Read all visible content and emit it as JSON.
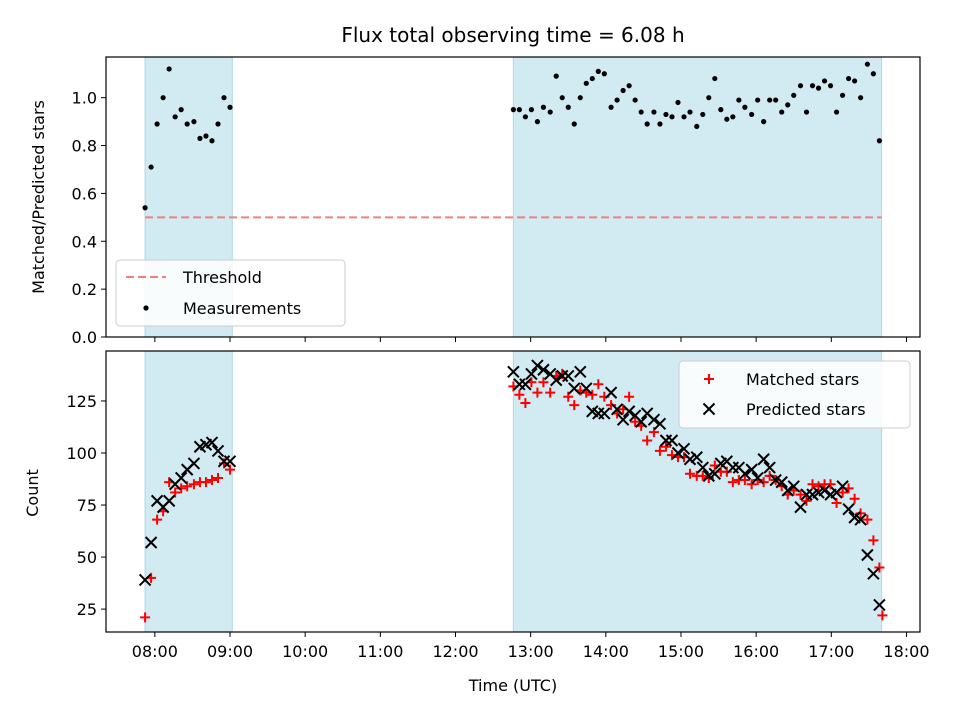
{
  "chart_data": {
    "title": "Flux total observing time = 6.08 h",
    "xlabel": "Time (UTC)",
    "x_unit": "hours UTC",
    "xlim": [
      7.35,
      18.18
    ],
    "x_ticks": [
      8,
      9,
      10,
      11,
      12,
      13,
      14,
      15,
      16,
      17,
      18
    ],
    "x_tick_labels": [
      "08:00",
      "09:00",
      "10:00",
      "11:00",
      "12:00",
      "13:00",
      "14:00",
      "15:00",
      "16:00",
      "17:00",
      "18:00"
    ],
    "shaded_intervals": [
      [
        7.87,
        9.03
      ],
      [
        12.77,
        17.67
      ]
    ],
    "shade_color": "#add8e6",
    "top": {
      "type": "scatter",
      "ylabel": "Matched/Predicted stars",
      "ylim": [
        0.0,
        1.17
      ],
      "y_ticks": [
        0.0,
        0.2,
        0.4,
        0.6,
        0.8,
        1.0
      ],
      "y_tick_labels": [
        "0.0",
        "0.2",
        "0.4",
        "0.6",
        "0.8",
        "1.0"
      ],
      "threshold": {
        "name": "Threshold",
        "value": 0.5,
        "x_range": [
          7.87,
          17.67
        ],
        "color": "#f08080",
        "style": "dashed"
      },
      "legend": {
        "position": "lower-left",
        "entries": [
          "Threshold",
          "Measurements"
        ]
      },
      "series": [
        {
          "name": "Measurements",
          "color": "#000000",
          "marker": "dot",
          "points": [
            [
              7.87,
              0.54
            ],
            [
              7.95,
              0.71
            ],
            [
              8.03,
              0.89
            ],
            [
              8.11,
              1.0
            ],
            [
              8.19,
              1.12
            ],
            [
              8.27,
              0.92
            ],
            [
              8.35,
              0.95
            ],
            [
              8.43,
              0.89
            ],
            [
              8.52,
              0.9
            ],
            [
              8.6,
              0.83
            ],
            [
              8.68,
              0.84
            ],
            [
              8.76,
              0.82
            ],
            [
              8.84,
              0.89
            ],
            [
              8.92,
              1.0
            ],
            [
              9.0,
              0.96
            ],
            [
              12.77,
              0.95
            ],
            [
              12.85,
              0.95
            ],
            [
              12.93,
              0.92
            ],
            [
              13.01,
              0.95
            ],
            [
              13.09,
              0.9
            ],
            [
              13.17,
              0.96
            ],
            [
              13.26,
              0.94
            ],
            [
              13.34,
              1.09
            ],
            [
              13.42,
              1.0
            ],
            [
              13.5,
              0.96
            ],
            [
              13.58,
              0.89
            ],
            [
              13.66,
              1.0
            ],
            [
              13.74,
              1.06
            ],
            [
              13.82,
              1.08
            ],
            [
              13.9,
              1.11
            ],
            [
              13.98,
              1.1
            ],
            [
              14.07,
              0.96
            ],
            [
              14.15,
              0.99
            ],
            [
              14.23,
              1.03
            ],
            [
              14.31,
              1.05
            ],
            [
              14.39,
              0.99
            ],
            [
              14.47,
              0.94
            ],
            [
              14.55,
              0.89
            ],
            [
              14.64,
              0.94
            ],
            [
              14.72,
              0.89
            ],
            [
              14.8,
              0.93
            ],
            [
              14.88,
              0.92
            ],
            [
              14.96,
              0.98
            ],
            [
              15.04,
              0.92
            ],
            [
              15.12,
              0.94
            ],
            [
              15.21,
              0.88
            ],
            [
              15.29,
              0.93
            ],
            [
              15.37,
              1.0
            ],
            [
              15.45,
              1.08
            ],
            [
              15.53,
              0.95
            ],
            [
              15.61,
              0.91
            ],
            [
              15.69,
              0.92
            ],
            [
              15.77,
              0.99
            ],
            [
              15.85,
              0.96
            ],
            [
              15.94,
              0.93
            ],
            [
              16.02,
              0.99
            ],
            [
              16.1,
              0.9
            ],
            [
              16.18,
              0.99
            ],
            [
              16.26,
              0.99
            ],
            [
              16.34,
              0.94
            ],
            [
              16.42,
              0.97
            ],
            [
              16.5,
              1.01
            ],
            [
              16.59,
              1.05
            ],
            [
              16.67,
              0.94
            ],
            [
              16.75,
              1.05
            ],
            [
              16.83,
              1.04
            ],
            [
              16.91,
              1.07
            ],
            [
              16.99,
              1.05
            ],
            [
              17.07,
              0.94
            ],
            [
              17.15,
              1.01
            ],
            [
              17.23,
              1.08
            ],
            [
              17.31,
              1.07
            ],
            [
              17.39,
              1.0
            ],
            [
              17.48,
              1.14
            ],
            [
              17.56,
              1.1
            ],
            [
              17.64,
              0.82
            ]
          ]
        }
      ]
    },
    "bottom": {
      "type": "scatter",
      "ylabel": "Count",
      "ylim": [
        14,
        149
      ],
      "y_ticks": [
        25,
        50,
        75,
        100,
        125
      ],
      "y_tick_labels": [
        "25",
        "50",
        "75",
        "100",
        "125"
      ],
      "legend": {
        "position": "upper-right",
        "entries": [
          "Matched stars",
          "Predicted stars"
        ]
      },
      "series": [
        {
          "name": "Matched stars",
          "color": "#ff0000",
          "marker": "plus",
          "points": [
            [
              7.87,
              21
            ],
            [
              7.95,
              40
            ],
            [
              8.03,
              68
            ],
            [
              8.11,
              72
            ],
            [
              8.19,
              86
            ],
            [
              8.27,
              81
            ],
            [
              8.35,
              83
            ],
            [
              8.43,
              84
            ],
            [
              8.52,
              85
            ],
            [
              8.6,
              86
            ],
            [
              8.68,
              86
            ],
            [
              8.76,
              87
            ],
            [
              8.84,
              88
            ],
            [
              8.92,
              95
            ],
            [
              9.0,
              92
            ],
            [
              12.77,
              132
            ],
            [
              12.85,
              128
            ],
            [
              12.93,
              124
            ],
            [
              13.01,
              134
            ],
            [
              13.09,
              129
            ],
            [
              13.17,
              134
            ],
            [
              13.26,
              129
            ],
            [
              13.34,
              137
            ],
            [
              13.42,
              138
            ],
            [
              13.5,
              127
            ],
            [
              13.58,
              123
            ],
            [
              13.66,
              130
            ],
            [
              13.74,
              129
            ],
            [
              13.82,
              128
            ],
            [
              13.9,
              133
            ],
            [
              13.98,
              127
            ],
            [
              14.07,
              123
            ],
            [
              14.15,
              119
            ],
            [
              14.23,
              121
            ],
            [
              14.31,
              127
            ],
            [
              14.39,
              115
            ],
            [
              14.47,
              113
            ],
            [
              14.55,
              106
            ],
            [
              14.64,
              110
            ],
            [
              14.72,
              101
            ],
            [
              14.8,
              103
            ],
            [
              14.88,
              99
            ],
            [
              14.96,
              98
            ],
            [
              15.04,
              98
            ],
            [
              15.12,
              90
            ],
            [
              15.21,
              89
            ],
            [
              15.29,
              89
            ],
            [
              15.37,
              88
            ],
            [
              15.45,
              94
            ],
            [
              15.53,
              91
            ],
            [
              15.61,
              91
            ],
            [
              15.69,
              86
            ],
            [
              15.77,
              87
            ],
            [
              15.85,
              87
            ],
            [
              15.94,
              85
            ],
            [
              16.02,
              87
            ],
            [
              16.1,
              86
            ],
            [
              16.18,
              89
            ],
            [
              16.26,
              87
            ],
            [
              16.34,
              84
            ],
            [
              16.42,
              80
            ],
            [
              16.5,
              82
            ],
            [
              16.59,
              80
            ],
            [
              16.67,
              77
            ],
            [
              16.75,
              85
            ],
            [
              16.83,
              84
            ],
            [
              16.91,
              85
            ],
            [
              16.99,
              85
            ],
            [
              17.07,
              76
            ],
            [
              17.15,
              81
            ],
            [
              17.23,
              83
            ],
            [
              17.31,
              78
            ],
            [
              17.39,
              71
            ],
            [
              17.48,
              68
            ],
            [
              17.56,
              58
            ],
            [
              17.64,
              45
            ],
            [
              17.68,
              22
            ]
          ]
        },
        {
          "name": "Predicted stars",
          "color": "#000000",
          "marker": "x",
          "points": [
            [
              7.87,
              39
            ],
            [
              7.95,
              57
            ],
            [
              8.03,
              77
            ],
            [
              8.11,
              74
            ],
            [
              8.19,
              77
            ],
            [
              8.27,
              85
            ],
            [
              8.35,
              88
            ],
            [
              8.43,
              92
            ],
            [
              8.52,
              95
            ],
            [
              8.6,
              103
            ],
            [
              8.68,
              104
            ],
            [
              8.76,
              105
            ],
            [
              8.84,
              101
            ],
            [
              8.92,
              96
            ],
            [
              9.0,
              96
            ],
            [
              12.77,
              139
            ],
            [
              12.85,
              133
            ],
            [
              12.93,
              133
            ],
            [
              13.01,
              138
            ],
            [
              13.09,
              142
            ],
            [
              13.17,
              140
            ],
            [
              13.26,
              138
            ],
            [
              13.34,
              135
            ],
            [
              13.42,
              137
            ],
            [
              13.5,
              137
            ],
            [
              13.58,
              131
            ],
            [
              13.66,
              139
            ],
            [
              13.74,
              131
            ],
            [
              13.82,
              120
            ],
            [
              13.9,
              119
            ],
            [
              13.98,
              119
            ],
            [
              14.07,
              129
            ],
            [
              14.15,
              121
            ],
            [
              14.23,
              116
            ],
            [
              14.31,
              120
            ],
            [
              14.39,
              118
            ],
            [
              14.47,
              115
            ],
            [
              14.55,
              119
            ],
            [
              14.64,
              116
            ],
            [
              14.72,
              114
            ],
            [
              14.8,
              106
            ],
            [
              14.88,
              106
            ],
            [
              14.96,
              100
            ],
            [
              15.04,
              102
            ],
            [
              15.12,
              97
            ],
            [
              15.21,
              98
            ],
            [
              15.29,
              93
            ],
            [
              15.37,
              89
            ],
            [
              15.45,
              90
            ],
            [
              15.53,
              95
            ],
            [
              15.61,
              96
            ],
            [
              15.69,
              93
            ],
            [
              15.77,
              93
            ],
            [
              15.85,
              90
            ],
            [
              15.94,
              92
            ],
            [
              16.02,
              88
            ],
            [
              16.1,
              97
            ],
            [
              16.18,
              93
            ],
            [
              16.26,
              87
            ],
            [
              16.34,
              86
            ],
            [
              16.42,
              82
            ],
            [
              16.5,
              84
            ],
            [
              16.59,
              74
            ],
            [
              16.67,
              80
            ],
            [
              16.75,
              80
            ],
            [
              16.83,
              81
            ],
            [
              16.91,
              82
            ],
            [
              16.99,
              80
            ],
            [
              17.07,
              81
            ],
            [
              17.15,
              84
            ],
            [
              17.23,
              73
            ],
            [
              17.31,
              69
            ],
            [
              17.39,
              68
            ],
            [
              17.48,
              51
            ],
            [
              17.56,
              42
            ],
            [
              17.64,
              27
            ]
          ]
        }
      ]
    }
  }
}
